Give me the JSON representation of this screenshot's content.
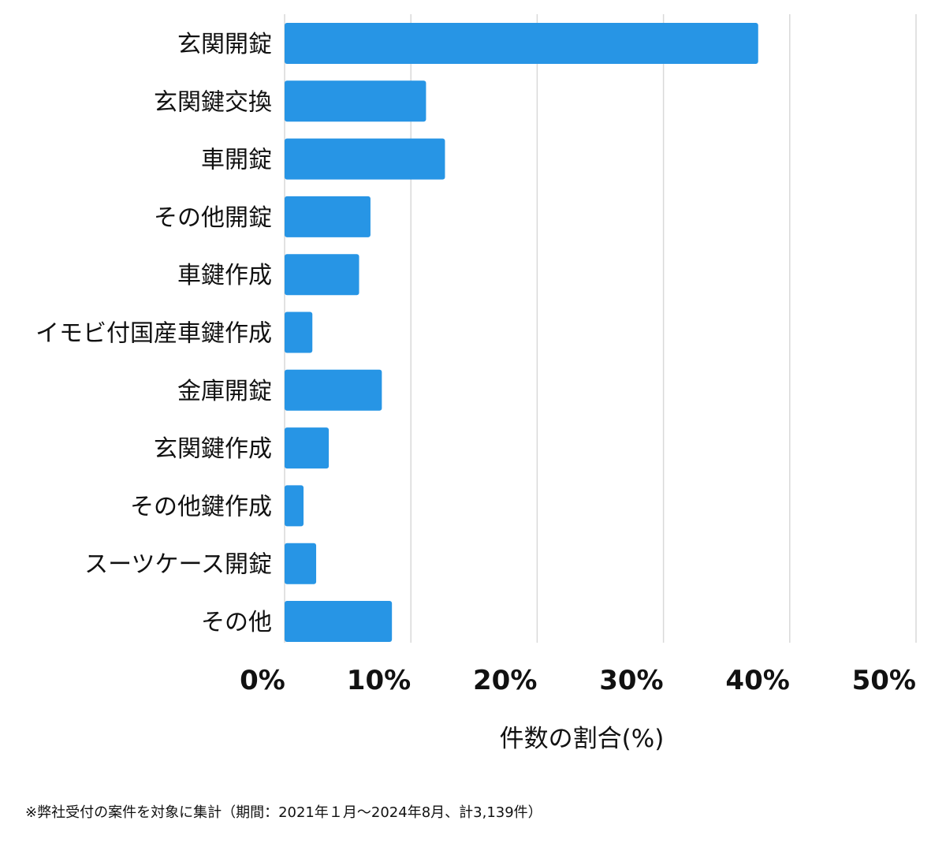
{
  "chart_data": {
    "type": "bar",
    "orientation": "horizontal",
    "categories": [
      "玄関開錠",
      "玄関鍵交換",
      "車開錠",
      "その他開錠",
      "車鍵作成",
      "イモビ付国産車鍵作成",
      "金庫開錠",
      "玄関鍵作成",
      "その他鍵作成",
      "スーツケース開錠",
      "その他"
    ],
    "values": [
      37.5,
      11.2,
      12.7,
      6.8,
      5.9,
      2.2,
      7.7,
      3.5,
      1.5,
      2.5,
      8.5
    ],
    "xlim": [
      0,
      50
    ],
    "xticks": [
      0,
      10,
      20,
      30,
      40,
      50
    ],
    "xtick_labels": [
      "0%",
      "10%",
      "20%",
      "30%",
      "40%",
      "50%"
    ],
    "xlabel": "件数の割合(%)",
    "ylabel": "",
    "grid": true,
    "bar_color": "#2795e5",
    "grid_color": "#d9d9d9"
  },
  "footnote": "※弊社受付の案件を対象に集計（期間：2021年１月〜2024年8月、計3,139件）"
}
